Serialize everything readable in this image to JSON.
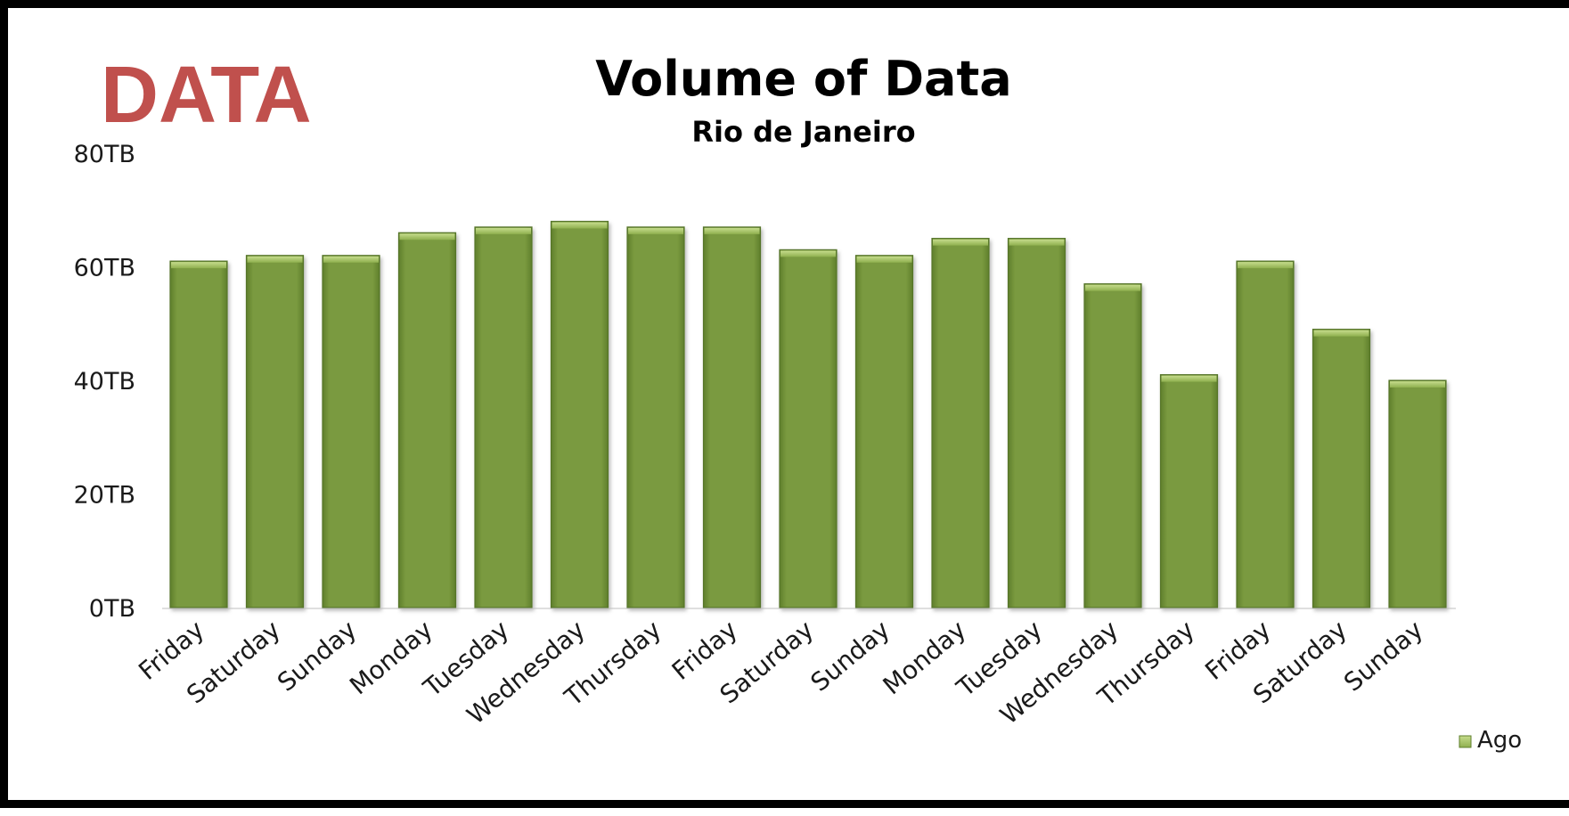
{
  "brand": {
    "label": "DATA",
    "color": "#C0504D"
  },
  "chart_data": {
    "type": "bar",
    "title": "Volume of Data",
    "subtitle": "Rio de Janeiro",
    "xlabel": "",
    "ylabel": "",
    "categories": [
      "Friday",
      "Saturday",
      "Sunday",
      "Monday",
      "Tuesday",
      "Wednesday",
      "Thursday",
      "Friday",
      "Saturday",
      "Sunday",
      "Monday",
      "Tuesday",
      "Wednesday",
      "Thursday",
      "Friday",
      "Saturday",
      "Sunday"
    ],
    "series": [
      {
        "name": "Ago",
        "color": "#7A9A3F",
        "values": [
          61,
          62,
          62,
          66,
          67,
          68,
          67,
          67,
          63,
          62,
          65,
          65,
          57,
          41,
          61,
          49,
          40
        ]
      }
    ],
    "ylim": [
      0,
      80
    ],
    "yticks": [
      {
        "value": 0,
        "label": "0TB"
      },
      {
        "value": 20,
        "label": "20TB"
      },
      {
        "value": 40,
        "label": "40TB"
      },
      {
        "value": 60,
        "label": "60TB"
      },
      {
        "value": 80,
        "label": "80TB"
      }
    ],
    "grid": false,
    "legend_position": "bottom-right"
  }
}
